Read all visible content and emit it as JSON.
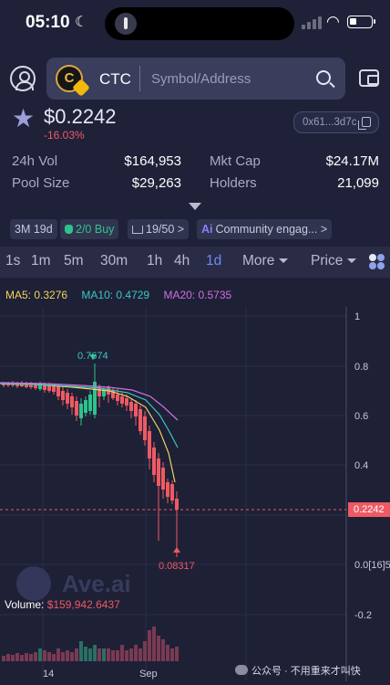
{
  "status": {
    "time": "05:10"
  },
  "header": {
    "token_symbol": "CTC",
    "token_logo_letter": "C",
    "search_placeholder": "Symbol/Address"
  },
  "token": {
    "price": "$0.2242",
    "change": "-16.03%",
    "address": "0x61...3d7c"
  },
  "stats": [
    {
      "label": "24h Vol",
      "value": "$164,953"
    },
    {
      "label": "Mkt Cap",
      "value": "$24.17M"
    },
    {
      "label": "Pool Size",
      "value": "$29,263"
    },
    {
      "label": "Holders",
      "value": "21,099"
    }
  ],
  "chips": {
    "age": "3M 19d",
    "buy_ratio": "2/0",
    "buy_label": "Buy",
    "rank": "19/50",
    "rank_suffix": ">",
    "ai_prefix": "Ai",
    "community": "Community engag...",
    "community_suffix": ">"
  },
  "tabs": {
    "intervals": [
      "1s",
      "1m",
      "5m",
      "30m",
      "1h",
      "4h",
      "1d"
    ],
    "active": "1d",
    "more": "More",
    "price": "Price"
  },
  "chart": {
    "ma5": "MA5: 0.3276",
    "ma10": "MA10: 0.4729",
    "ma20": "MA20: 0.5735",
    "y_ticks": [
      "1",
      "0.8",
      "0.6",
      "0.4",
      "0.0[16]5",
      "-0.2"
    ],
    "current_price": "0.2242",
    "high_label": "0.7674",
    "low_label": "0.08317",
    "volume_label": "Volume:",
    "volume_value": "$159,942.6437",
    "x_ticks": [
      "14",
      "Sep"
    ],
    "watermark": "Ave.ai",
    "colors": {
      "up": "#2ec28e",
      "down": "#ee5a63",
      "ma5": "#f1d35d",
      "ma10": "#3cc7c1",
      "ma20": "#d06fe0"
    }
  },
  "footer": {
    "wechat": "公众号 · 不用重来才叫快"
  }
}
